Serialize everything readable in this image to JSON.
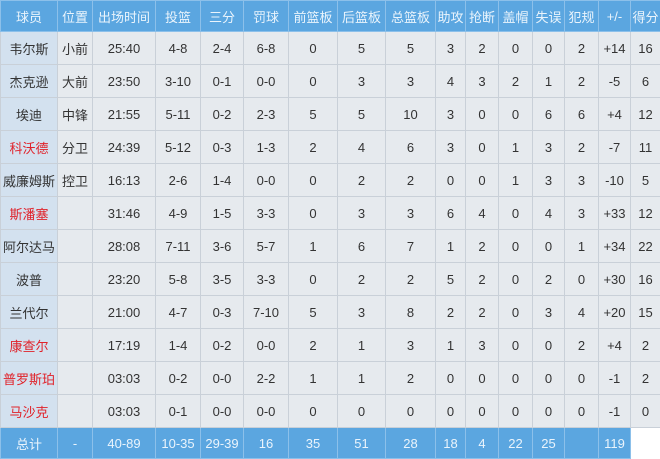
{
  "columns": [
    "球员",
    "位置",
    "出场时间",
    "投篮",
    "三分",
    "罚球",
    "前篮板",
    "后篮板",
    "总篮板",
    "助攻",
    "抢断",
    "盖帽",
    "失误",
    "犯规",
    "+/-",
    "得分"
  ],
  "rows": [
    {
      "name": "韦尔斯",
      "highlight": false,
      "cells": [
        "小前",
        "25:40",
        "4-8",
        "2-4",
        "6-8",
        "0",
        "5",
        "5",
        "3",
        "2",
        "0",
        "0",
        "2",
        "+14",
        "16"
      ]
    },
    {
      "name": "杰克逊",
      "highlight": false,
      "cells": [
        "大前",
        "23:50",
        "3-10",
        "0-1",
        "0-0",
        "0",
        "3",
        "3",
        "4",
        "3",
        "2",
        "1",
        "2",
        "-5",
        "6"
      ]
    },
    {
      "name": "埃迪",
      "highlight": false,
      "cells": [
        "中锋",
        "21:55",
        "5-11",
        "0-2",
        "2-3",
        "5",
        "5",
        "10",
        "3",
        "0",
        "0",
        "6",
        "6",
        "+4",
        "12"
      ]
    },
    {
      "name": "科沃德",
      "highlight": true,
      "cells": [
        "分卫",
        "24:39",
        "5-12",
        "0-3",
        "1-3",
        "2",
        "4",
        "6",
        "3",
        "0",
        "1",
        "3",
        "2",
        "-7",
        "11"
      ]
    },
    {
      "name": "威廉姆斯",
      "highlight": false,
      "cells": [
        "控卫",
        "16:13",
        "2-6",
        "1-4",
        "0-0",
        "0",
        "2",
        "2",
        "0",
        "0",
        "1",
        "3",
        "3",
        "-10",
        "5"
      ]
    },
    {
      "name": "斯潘塞",
      "highlight": true,
      "cells": [
        "",
        "31:46",
        "4-9",
        "1-5",
        "3-3",
        "0",
        "3",
        "3",
        "6",
        "4",
        "0",
        "4",
        "3",
        "+33",
        "12"
      ]
    },
    {
      "name": "阿尔达马",
      "highlight": false,
      "cells": [
        "",
        "28:08",
        "7-11",
        "3-6",
        "5-7",
        "1",
        "6",
        "7",
        "1",
        "2",
        "0",
        "0",
        "1",
        "+34",
        "22"
      ]
    },
    {
      "name": "波普",
      "highlight": false,
      "cells": [
        "",
        "23:20",
        "5-8",
        "3-5",
        "3-3",
        "0",
        "2",
        "2",
        "5",
        "2",
        "0",
        "2",
        "0",
        "+30",
        "16"
      ]
    },
    {
      "name": "兰代尔",
      "highlight": false,
      "cells": [
        "",
        "21:00",
        "4-7",
        "0-3",
        "7-10",
        "5",
        "3",
        "8",
        "2",
        "2",
        "0",
        "3",
        "4",
        "+20",
        "15"
      ]
    },
    {
      "name": "康查尔",
      "highlight": true,
      "cells": [
        "",
        "17:19",
        "1-4",
        "0-2",
        "0-0",
        "2",
        "1",
        "3",
        "1",
        "3",
        "0",
        "0",
        "2",
        "+4",
        "2"
      ]
    },
    {
      "name": "普罗斯珀",
      "highlight": true,
      "cells": [
        "",
        "03:03",
        "0-2",
        "0-0",
        "2-2",
        "1",
        "1",
        "2",
        "0",
        "0",
        "0",
        "0",
        "0",
        "-1",
        "2"
      ]
    },
    {
      "name": "马沙克",
      "highlight": true,
      "cells": [
        "",
        "03:03",
        "0-1",
        "0-0",
        "0-0",
        "0",
        "0",
        "0",
        "0",
        "0",
        "0",
        "0",
        "0",
        "-1",
        "0"
      ]
    }
  ],
  "total": {
    "name": "总计",
    "cells": [
      "",
      "-",
      "40-89",
      "10-35",
      "29-39",
      "16",
      "35",
      "51",
      "28",
      "18",
      "4",
      "22",
      "25",
      "",
      "119"
    ]
  },
  "colors": {
    "header": "#5ba6e0",
    "highlight_name": "#e0222a"
  }
}
